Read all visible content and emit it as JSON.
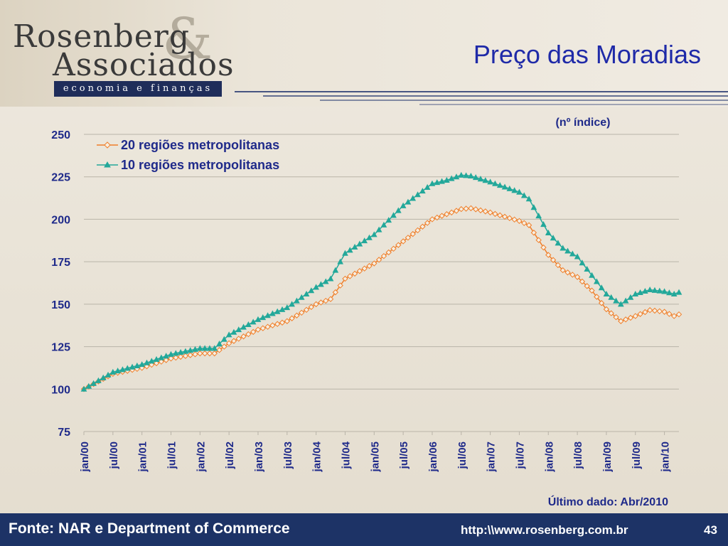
{
  "header": {
    "logo_line1": "Rosenberg",
    "logo_line2": "Associados",
    "logo_tagline": "economia e finanças",
    "title": "Preço das Moradias"
  },
  "footer": {
    "source": "Fonte: NAR e Department of Commerce",
    "url": "http:\\\\www.rosenberg.com.br",
    "page": "43"
  },
  "colors": {
    "series_20": "#f07f2a",
    "series_10": "#23a89a",
    "axis_text": "#1f2a8a",
    "footer_bg": "#1d3366"
  },
  "chart_data": {
    "type": "line",
    "title": "",
    "unit_label": "(nº índice)",
    "note": "Último dado: Abr/2010",
    "ylim": [
      75,
      250
    ],
    "yticks": [
      75,
      100,
      125,
      150,
      175,
      200,
      225,
      250
    ],
    "grid": true,
    "legend_position": "top-left",
    "x_tick_labels": [
      "jan/00",
      "jul/00",
      "jan/01",
      "jul/01",
      "jan/02",
      "jul/02",
      "jan/03",
      "jul/03",
      "jan/04",
      "jul/04",
      "jan/05",
      "jul/05",
      "jan/06",
      "jul/06",
      "jan/07",
      "jul/07",
      "jan/08",
      "jul/08",
      "jan/09",
      "jul/09",
      "jan/10"
    ],
    "x_tick_every_months": 6,
    "x_start": "jan/00",
    "x_end": "abr/10",
    "series": [
      {
        "name": "20 regiões metropolitanas",
        "marker": "diamond",
        "anchors": [
          [
            "jan/00",
            100
          ],
          [
            "jul/00",
            109
          ],
          [
            "jan/01",
            112.5
          ],
          [
            "jul/01",
            118
          ],
          [
            "jan/02",
            121
          ],
          [
            "apr/02",
            121
          ],
          [
            "jul/02",
            127
          ],
          [
            "jan/03",
            135
          ],
          [
            "jul/03",
            140
          ],
          [
            "jan/04",
            150
          ],
          [
            "apr/04",
            153
          ],
          [
            "jul/04",
            165
          ],
          [
            "jan/05",
            174
          ],
          [
            "jul/05",
            187
          ],
          [
            "jan/06",
            200
          ],
          [
            "apr/06",
            203
          ],
          [
            "jul/06",
            206
          ],
          [
            "sep/06",
            206.5
          ],
          [
            "jan/07",
            204
          ],
          [
            "jul/07",
            199
          ],
          [
            "sep/07",
            196.5
          ],
          [
            "jan/08",
            179
          ],
          [
            "apr/08",
            170
          ],
          [
            "jul/08",
            166
          ],
          [
            "oct/08",
            158
          ],
          [
            "jan/09",
            147
          ],
          [
            "apr/09",
            140
          ],
          [
            "jul/09",
            143
          ],
          [
            "oct/09",
            146.5
          ],
          [
            "jan/10",
            145.5
          ],
          [
            "mar/10",
            143
          ],
          [
            "apr/10",
            144
          ]
        ]
      },
      {
        "name": "10 regiões metropolitanas",
        "marker": "triangle",
        "anchors": [
          [
            "jan/00",
            100
          ],
          [
            "jul/00",
            110
          ],
          [
            "jan/01",
            114.5
          ],
          [
            "jul/01",
            120.5
          ],
          [
            "jan/02",
            124
          ],
          [
            "apr/02",
            124
          ],
          [
            "jul/02",
            132
          ],
          [
            "jan/03",
            141
          ],
          [
            "jul/03",
            148
          ],
          [
            "jan/04",
            160
          ],
          [
            "apr/04",
            165
          ],
          [
            "jul/04",
            180
          ],
          [
            "jan/05",
            191
          ],
          [
            "jul/05",
            208
          ],
          [
            "jan/06",
            221
          ],
          [
            "apr/06",
            223
          ],
          [
            "jul/06",
            226
          ],
          [
            "sep/06",
            225.5
          ],
          [
            "jan/07",
            222
          ],
          [
            "jul/07",
            216
          ],
          [
            "sep/07",
            212
          ],
          [
            "jan/08",
            192
          ],
          [
            "apr/08",
            183
          ],
          [
            "jul/08",
            178
          ],
          [
            "oct/08",
            167
          ],
          [
            "jan/09",
            156
          ],
          [
            "apr/09",
            150
          ],
          [
            "jul/09",
            156
          ],
          [
            "oct/09",
            158.5
          ],
          [
            "jan/10",
            157.5
          ],
          [
            "mar/10",
            156
          ],
          [
            "apr/10",
            157
          ]
        ]
      }
    ]
  }
}
